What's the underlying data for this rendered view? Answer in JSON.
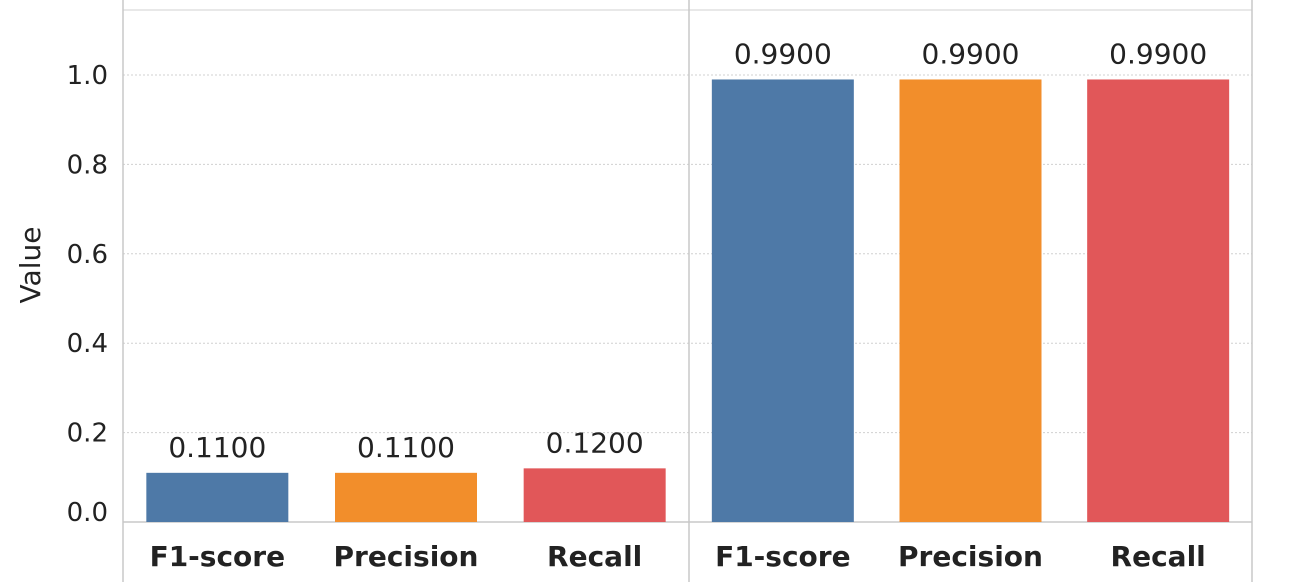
{
  "chart_data": {
    "type": "bar",
    "ylabel": "Value",
    "ylim": [
      0,
      1.15
    ],
    "yticks": [
      0.0,
      0.2,
      0.4,
      0.6,
      0.8,
      1.0
    ],
    "ytick_labels": [
      "0.0",
      "0.2",
      "0.4",
      "0.6",
      "0.8",
      "1.0"
    ],
    "grid": true,
    "colors": {
      "F1-score": "#4e79a7",
      "Precision": "#f28e2b",
      "Recall": "#e15759"
    },
    "panels": [
      {
        "categories": [
          "F1-score",
          "Precision",
          "Recall"
        ],
        "values": [
          0.11,
          0.11,
          0.12
        ],
        "value_labels": [
          "0.1100",
          "0.1100",
          "0.1200"
        ]
      },
      {
        "categories": [
          "F1-score",
          "Precision",
          "Recall"
        ],
        "values": [
          0.99,
          0.99,
          0.99
        ],
        "value_labels": [
          "0.9900",
          "0.9900",
          "0.9900"
        ]
      }
    ]
  }
}
